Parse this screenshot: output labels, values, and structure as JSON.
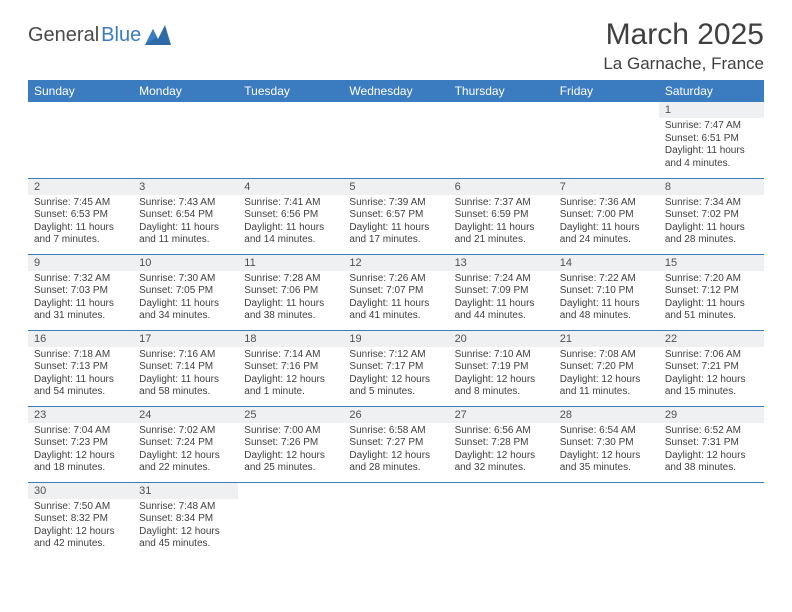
{
  "logo": {
    "part1": "General",
    "part2": "Blue"
  },
  "title": "March 2025",
  "location": "La Garnache, France",
  "colors": {
    "header_bg": "#3b7bbf",
    "header_text": "#ffffff",
    "daynum_bg": "#eef0f2",
    "text": "#404040",
    "rule": "#3b7bbf",
    "page_bg": "#ffffff"
  },
  "weekdays": [
    "Sunday",
    "Monday",
    "Tuesday",
    "Wednesday",
    "Thursday",
    "Friday",
    "Saturday"
  ],
  "grid": [
    [
      null,
      null,
      null,
      null,
      null,
      null,
      {
        "n": "1",
        "sr": "Sunrise: 7:47 AM",
        "ss": "Sunset: 6:51 PM",
        "dl": "Daylight: 11 hours and 4 minutes."
      }
    ],
    [
      {
        "n": "2",
        "sr": "Sunrise: 7:45 AM",
        "ss": "Sunset: 6:53 PM",
        "dl": "Daylight: 11 hours and 7 minutes."
      },
      {
        "n": "3",
        "sr": "Sunrise: 7:43 AM",
        "ss": "Sunset: 6:54 PM",
        "dl": "Daylight: 11 hours and 11 minutes."
      },
      {
        "n": "4",
        "sr": "Sunrise: 7:41 AM",
        "ss": "Sunset: 6:56 PM",
        "dl": "Daylight: 11 hours and 14 minutes."
      },
      {
        "n": "5",
        "sr": "Sunrise: 7:39 AM",
        "ss": "Sunset: 6:57 PM",
        "dl": "Daylight: 11 hours and 17 minutes."
      },
      {
        "n": "6",
        "sr": "Sunrise: 7:37 AM",
        "ss": "Sunset: 6:59 PM",
        "dl": "Daylight: 11 hours and 21 minutes."
      },
      {
        "n": "7",
        "sr": "Sunrise: 7:36 AM",
        "ss": "Sunset: 7:00 PM",
        "dl": "Daylight: 11 hours and 24 minutes."
      },
      {
        "n": "8",
        "sr": "Sunrise: 7:34 AM",
        "ss": "Sunset: 7:02 PM",
        "dl": "Daylight: 11 hours and 28 minutes."
      }
    ],
    [
      {
        "n": "9",
        "sr": "Sunrise: 7:32 AM",
        "ss": "Sunset: 7:03 PM",
        "dl": "Daylight: 11 hours and 31 minutes."
      },
      {
        "n": "10",
        "sr": "Sunrise: 7:30 AM",
        "ss": "Sunset: 7:05 PM",
        "dl": "Daylight: 11 hours and 34 minutes."
      },
      {
        "n": "11",
        "sr": "Sunrise: 7:28 AM",
        "ss": "Sunset: 7:06 PM",
        "dl": "Daylight: 11 hours and 38 minutes."
      },
      {
        "n": "12",
        "sr": "Sunrise: 7:26 AM",
        "ss": "Sunset: 7:07 PM",
        "dl": "Daylight: 11 hours and 41 minutes."
      },
      {
        "n": "13",
        "sr": "Sunrise: 7:24 AM",
        "ss": "Sunset: 7:09 PM",
        "dl": "Daylight: 11 hours and 44 minutes."
      },
      {
        "n": "14",
        "sr": "Sunrise: 7:22 AM",
        "ss": "Sunset: 7:10 PM",
        "dl": "Daylight: 11 hours and 48 minutes."
      },
      {
        "n": "15",
        "sr": "Sunrise: 7:20 AM",
        "ss": "Sunset: 7:12 PM",
        "dl": "Daylight: 11 hours and 51 minutes."
      }
    ],
    [
      {
        "n": "16",
        "sr": "Sunrise: 7:18 AM",
        "ss": "Sunset: 7:13 PM",
        "dl": "Daylight: 11 hours and 54 minutes."
      },
      {
        "n": "17",
        "sr": "Sunrise: 7:16 AM",
        "ss": "Sunset: 7:14 PM",
        "dl": "Daylight: 11 hours and 58 minutes."
      },
      {
        "n": "18",
        "sr": "Sunrise: 7:14 AM",
        "ss": "Sunset: 7:16 PM",
        "dl": "Daylight: 12 hours and 1 minute."
      },
      {
        "n": "19",
        "sr": "Sunrise: 7:12 AM",
        "ss": "Sunset: 7:17 PM",
        "dl": "Daylight: 12 hours and 5 minutes."
      },
      {
        "n": "20",
        "sr": "Sunrise: 7:10 AM",
        "ss": "Sunset: 7:19 PM",
        "dl": "Daylight: 12 hours and 8 minutes."
      },
      {
        "n": "21",
        "sr": "Sunrise: 7:08 AM",
        "ss": "Sunset: 7:20 PM",
        "dl": "Daylight: 12 hours and 11 minutes."
      },
      {
        "n": "22",
        "sr": "Sunrise: 7:06 AM",
        "ss": "Sunset: 7:21 PM",
        "dl": "Daylight: 12 hours and 15 minutes."
      }
    ],
    [
      {
        "n": "23",
        "sr": "Sunrise: 7:04 AM",
        "ss": "Sunset: 7:23 PM",
        "dl": "Daylight: 12 hours and 18 minutes."
      },
      {
        "n": "24",
        "sr": "Sunrise: 7:02 AM",
        "ss": "Sunset: 7:24 PM",
        "dl": "Daylight: 12 hours and 22 minutes."
      },
      {
        "n": "25",
        "sr": "Sunrise: 7:00 AM",
        "ss": "Sunset: 7:26 PM",
        "dl": "Daylight: 12 hours and 25 minutes."
      },
      {
        "n": "26",
        "sr": "Sunrise: 6:58 AM",
        "ss": "Sunset: 7:27 PM",
        "dl": "Daylight: 12 hours and 28 minutes."
      },
      {
        "n": "27",
        "sr": "Sunrise: 6:56 AM",
        "ss": "Sunset: 7:28 PM",
        "dl": "Daylight: 12 hours and 32 minutes."
      },
      {
        "n": "28",
        "sr": "Sunrise: 6:54 AM",
        "ss": "Sunset: 7:30 PM",
        "dl": "Daylight: 12 hours and 35 minutes."
      },
      {
        "n": "29",
        "sr": "Sunrise: 6:52 AM",
        "ss": "Sunset: 7:31 PM",
        "dl": "Daylight: 12 hours and 38 minutes."
      }
    ],
    [
      {
        "n": "30",
        "sr": "Sunrise: 7:50 AM",
        "ss": "Sunset: 8:32 PM",
        "dl": "Daylight: 12 hours and 42 minutes."
      },
      {
        "n": "31",
        "sr": "Sunrise: 7:48 AM",
        "ss": "Sunset: 8:34 PM",
        "dl": "Daylight: 12 hours and 45 minutes."
      },
      null,
      null,
      null,
      null,
      null
    ]
  ]
}
